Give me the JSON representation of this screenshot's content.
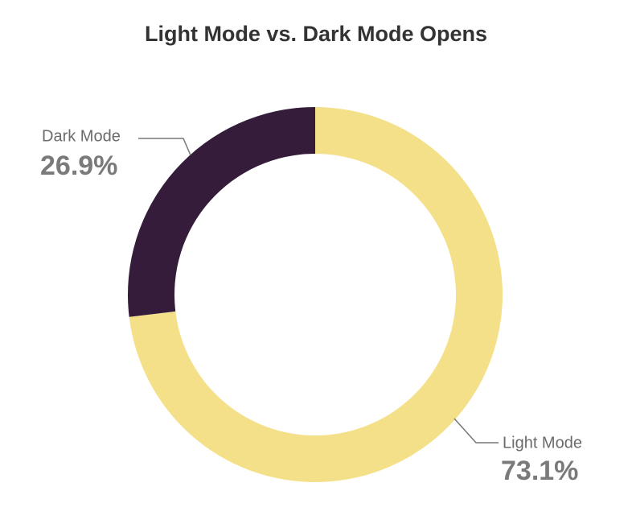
{
  "chart_data": {
    "type": "pie",
    "donut": true,
    "title": "Light Mode vs. Dark Mode Opens",
    "categories": [
      "Light Mode",
      "Dark Mode"
    ],
    "values": [
      73.1,
      26.9
    ],
    "value_labels": [
      "73.1%",
      "26.9%"
    ],
    "colors": [
      "#f5e08a",
      "#351c3b"
    ]
  }
}
